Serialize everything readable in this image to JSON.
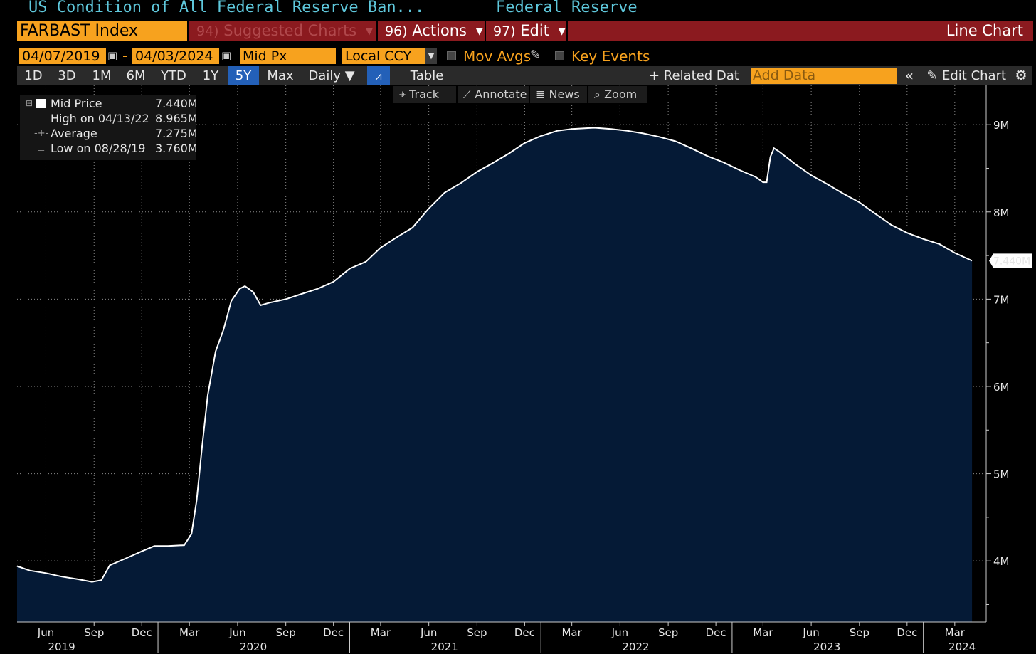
{
  "header": {
    "title": "US Condition of All Federal Reserve Ban...",
    "source": "Federal Reserve"
  },
  "command_bar": {
    "ticker": "FARBAST Index",
    "suggested_key": "94)",
    "suggested_label": "Suggested Charts",
    "actions_key": "96)",
    "actions_label": "Actions",
    "edit_key": "97)",
    "edit_label": "Edit",
    "chart_type": "Line Chart"
  },
  "settings": {
    "date_start": "04/07/2019",
    "date_end": "04/03/2024",
    "date_separator": "-",
    "price_type": "Mid Px",
    "currency": "Local CCY",
    "mov_avgs_label": "Mov Avgs",
    "key_events_label": "Key Events"
  },
  "range_buttons": [
    "1D",
    "3D",
    "1M",
    "6M",
    "YTD",
    "1Y",
    "5Y",
    "Max"
  ],
  "active_range": "5Y",
  "frequency": "Daily ▼",
  "table_label": "Table",
  "related_data_label": "+ Related Dat",
  "add_data_placeholder": "Add Data",
  "edit_chart_label": "Edit Chart",
  "toolbar": {
    "track": "Track",
    "annotate": "Annotate",
    "news": "News",
    "zoom": "Zoom"
  },
  "legend": {
    "mid_label": "Mid Price",
    "mid_value": "7.440M",
    "high_label": "High on 04/13/22",
    "high_value": "8.965M",
    "avg_label": "Average",
    "avg_value": "7.275M",
    "low_label": "Low on 08/28/19",
    "low_value": "3.760M"
  },
  "colors": {
    "accent_orange": "#f7a21e",
    "bar_red": "#8b1a1f",
    "title_cyan": "#5fc8dc",
    "area_fill": "#051a36",
    "line": "#ffffff",
    "active_blue": "#2360b8"
  },
  "icons": [
    "calendar-icon",
    "pencil-icon",
    "chart-line-icon",
    "crosshair-icon",
    "annotate-icon",
    "news-icon",
    "search-icon",
    "double-chevron-left-icon",
    "gear-icon"
  ],
  "chart_data": {
    "type": "area",
    "series_name": "Mid Price",
    "last_value_label": "7.440M",
    "y_unit": "M",
    "ylim": [
      3.3,
      9.45
    ],
    "y_ticks": [
      4,
      5,
      6,
      7,
      8,
      9
    ],
    "y_tick_labels": [
      "4M",
      "5M",
      "6M",
      "7M",
      "8M",
      "9M"
    ],
    "xlim": [
      "2019-04-07",
      "2024-04-30"
    ],
    "x_month_ticks": [
      {
        "date": "2019-06-01",
        "label": "Jun"
      },
      {
        "date": "2019-09-01",
        "label": "Sep"
      },
      {
        "date": "2019-12-01",
        "label": "Dec"
      },
      {
        "date": "2020-03-01",
        "label": "Mar"
      },
      {
        "date": "2020-06-01",
        "label": "Jun"
      },
      {
        "date": "2020-09-01",
        "label": "Sep"
      },
      {
        "date": "2020-12-01",
        "label": "Dec"
      },
      {
        "date": "2021-03-01",
        "label": "Mar"
      },
      {
        "date": "2021-06-01",
        "label": "Jun"
      },
      {
        "date": "2021-09-01",
        "label": "Sep"
      },
      {
        "date": "2021-12-01",
        "label": "Dec"
      },
      {
        "date": "2022-03-01",
        "label": "Mar"
      },
      {
        "date": "2022-06-01",
        "label": "Jun"
      },
      {
        "date": "2022-09-01",
        "label": "Sep"
      },
      {
        "date": "2022-12-01",
        "label": "Dec"
      },
      {
        "date": "2023-03-01",
        "label": "Mar"
      },
      {
        "date": "2023-06-01",
        "label": "Jun"
      },
      {
        "date": "2023-09-01",
        "label": "Sep"
      },
      {
        "date": "2023-12-01",
        "label": "Dec"
      },
      {
        "date": "2024-03-01",
        "label": "Mar"
      }
    ],
    "x_year_ticks": [
      {
        "date": "2019-07-01",
        "label": "2019"
      },
      {
        "date": "2020-07-01",
        "label": "2020"
      },
      {
        "date": "2021-07-01",
        "label": "2021"
      },
      {
        "date": "2022-07-01",
        "label": "2022"
      },
      {
        "date": "2023-07-01",
        "label": "2023"
      },
      {
        "date": "2024-03-15",
        "label": "2024"
      }
    ],
    "x_year_boundaries": [
      "2020-01-01",
      "2021-01-01",
      "2022-01-01",
      "2023-01-01",
      "2024-01-01"
    ],
    "points": [
      [
        "2019-04-07",
        3.94
      ],
      [
        "2019-05-01",
        3.89
      ],
      [
        "2019-06-01",
        3.86
      ],
      [
        "2019-07-01",
        3.82
      ],
      [
        "2019-08-01",
        3.79
      ],
      [
        "2019-08-28",
        3.76
      ],
      [
        "2019-09-15",
        3.78
      ],
      [
        "2019-10-01",
        3.95
      ],
      [
        "2019-11-01",
        4.03
      ],
      [
        "2019-12-01",
        4.11
      ],
      [
        "2019-12-25",
        4.17
      ],
      [
        "2020-01-20",
        4.17
      ],
      [
        "2020-02-20",
        4.18
      ],
      [
        "2020-03-05",
        4.31
      ],
      [
        "2020-03-15",
        4.7
      ],
      [
        "2020-03-25",
        5.3
      ],
      [
        "2020-04-05",
        5.9
      ],
      [
        "2020-04-20",
        6.4
      ],
      [
        "2020-05-05",
        6.65
      ],
      [
        "2020-05-20",
        6.98
      ],
      [
        "2020-06-05",
        7.12
      ],
      [
        "2020-06-15",
        7.15
      ],
      [
        "2020-07-01",
        7.08
      ],
      [
        "2020-07-15",
        6.93
      ],
      [
        "2020-08-01",
        6.96
      ],
      [
        "2020-09-01",
        7.0
      ],
      [
        "2020-10-01",
        7.06
      ],
      [
        "2020-11-01",
        7.12
      ],
      [
        "2020-12-01",
        7.2
      ],
      [
        "2021-01-01",
        7.35
      ],
      [
        "2021-02-01",
        7.43
      ],
      [
        "2021-03-01",
        7.59
      ],
      [
        "2021-04-01",
        7.71
      ],
      [
        "2021-05-01",
        7.82
      ],
      [
        "2021-06-01",
        8.04
      ],
      [
        "2021-07-01",
        8.22
      ],
      [
        "2021-08-01",
        8.33
      ],
      [
        "2021-09-01",
        8.46
      ],
      [
        "2021-10-01",
        8.56
      ],
      [
        "2021-11-01",
        8.67
      ],
      [
        "2021-12-01",
        8.79
      ],
      [
        "2022-01-01",
        8.87
      ],
      [
        "2022-02-01",
        8.93
      ],
      [
        "2022-03-01",
        8.95
      ],
      [
        "2022-04-13",
        8.965
      ],
      [
        "2022-05-15",
        8.95
      ],
      [
        "2022-06-15",
        8.93
      ],
      [
        "2022-07-15",
        8.9
      ],
      [
        "2022-08-15",
        8.86
      ],
      [
        "2022-09-15",
        8.81
      ],
      [
        "2022-10-15",
        8.73
      ],
      [
        "2022-11-15",
        8.64
      ],
      [
        "2022-12-15",
        8.57
      ],
      [
        "2023-01-15",
        8.48
      ],
      [
        "2023-02-15",
        8.4
      ],
      [
        "2023-03-01",
        8.34
      ],
      [
        "2023-03-08",
        8.34
      ],
      [
        "2023-03-15",
        8.63
      ],
      [
        "2023-03-22",
        8.73
      ],
      [
        "2023-04-01",
        8.69
      ],
      [
        "2023-05-01",
        8.55
      ],
      [
        "2023-06-01",
        8.42
      ],
      [
        "2023-07-01",
        8.32
      ],
      [
        "2023-08-01",
        8.21
      ],
      [
        "2023-09-01",
        8.11
      ],
      [
        "2023-10-01",
        7.98
      ],
      [
        "2023-11-01",
        7.85
      ],
      [
        "2023-12-01",
        7.76
      ],
      [
        "2024-01-01",
        7.69
      ],
      [
        "2024-02-01",
        7.63
      ],
      [
        "2024-03-01",
        7.53
      ],
      [
        "2024-04-03",
        7.44
      ]
    ]
  }
}
